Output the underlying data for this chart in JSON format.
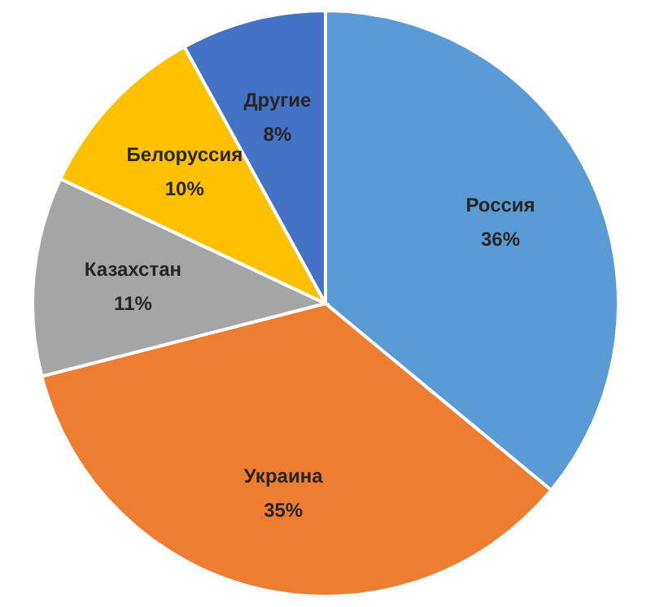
{
  "chart_data": {
    "type": "pie",
    "categories": [
      "Россия",
      "Украина",
      "Казахстан",
      "Белоруссия",
      "Другие"
    ],
    "values": [
      36,
      35,
      11,
      10,
      8
    ],
    "value_labels": [
      "36%",
      "35%",
      "11%",
      "10%",
      "8%"
    ],
    "colors": [
      "#5b9bd5",
      "#ed7d31",
      "#a5a5a5",
      "#ffc000",
      "#4472c4"
    ]
  }
}
